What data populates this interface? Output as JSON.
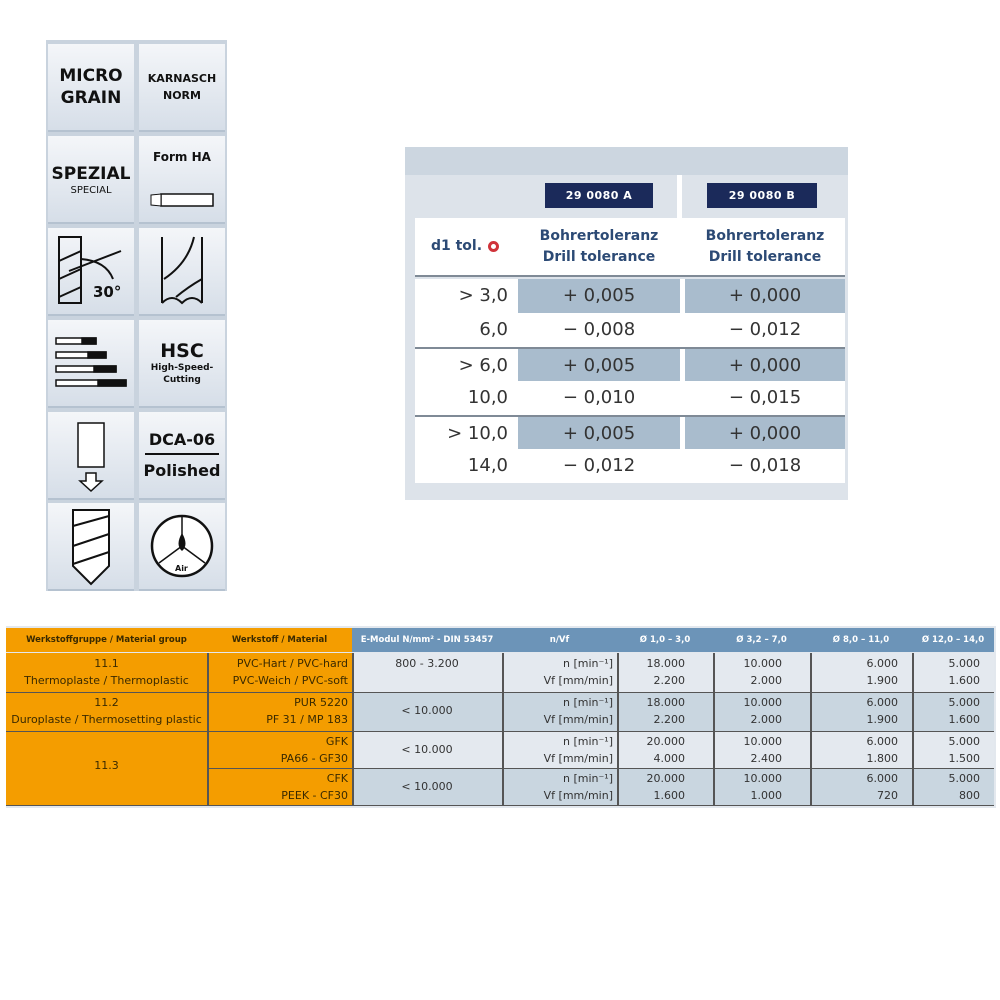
{
  "icons": {
    "micro_grain": [
      "MICRO",
      "GRAIN"
    ],
    "karnasch_norm": [
      "KARNASCH",
      "NORM"
    ],
    "spezial": [
      "SPEZIAL",
      "SPECIAL"
    ],
    "form_ha": "Form HA",
    "helix_angle": "30°",
    "hsc": [
      "HSC",
      "High-Speed-",
      "Cutting"
    ],
    "dca": [
      "DCA-06",
      "Polished"
    ],
    "coolant": "Air"
  },
  "tolerance": {
    "badges": [
      "29 0080 A",
      "29 0080 B"
    ],
    "d1_label": "d1 tol.",
    "col_header": [
      "Bohrertoleranz",
      "Drill tolerance"
    ],
    "rows": [
      {
        "d": "> 3,0",
        "a": "+ 0,005",
        "b": "+ 0,000"
      },
      {
        "d": "6,0",
        "a": "− 0,008",
        "b": "− 0,012"
      },
      {
        "d": "> 6,0",
        "a": "+ 0,005",
        "b": "+ 0,000"
      },
      {
        "d": "10,0",
        "a": "− 0,010",
        "b": "− 0,015"
      },
      {
        "d": "> 10,0",
        "a": "+ 0,005",
        "b": "+ 0,000"
      },
      {
        "d": "14,0",
        "a": "− 0,012",
        "b": "− 0,018"
      }
    ]
  },
  "materials": {
    "headers": [
      "Werkstoffgruppe / Material group",
      "Werkstoff / Material",
      "E-Modul N/mm² - DIN 53457",
      "n/Vf",
      "Ø 1,0 – 3,0",
      "Ø 3,2 – 7,0",
      "Ø 8,0 – 11,0",
      "Ø 12,0 – 14,0"
    ],
    "n_label": "n [min⁻¹]",
    "vf_label": "Vf [mm/min]",
    "groups": [
      {
        "group": [
          "11.1",
          "Thermoplaste / Thermoplastic"
        ]
      },
      {
        "group": [
          "11.2",
          "Duroplaste / Thermosetting plastic"
        ]
      },
      {
        "group": [
          "11.3"
        ]
      }
    ],
    "rows": [
      {
        "material": [
          "PVC-Hart / PVC-hard",
          "PVC-Weich / PVC-soft"
        ],
        "emodul": "800 - 3.200",
        "n": [
          "18.000",
          "10.000",
          "6.000",
          "5.000"
        ],
        "vf": [
          "2.200",
          "2.000",
          "1.900",
          "1.600"
        ]
      },
      {
        "material": [
          "PUR 5220",
          "PF 31 / MP 183"
        ],
        "emodul": "< 10.000",
        "n": [
          "18.000",
          "10.000",
          "6.000",
          "5.000"
        ],
        "vf": [
          "2.200",
          "2.000",
          "1.900",
          "1.600"
        ]
      },
      {
        "material": [
          "GFK",
          "PA66 - GF30"
        ],
        "emodul": "< 10.000",
        "n": [
          "20.000",
          "10.000",
          "6.000",
          "5.000"
        ],
        "vf": [
          "4.000",
          "2.400",
          "1.800",
          "1.500"
        ]
      },
      {
        "material": [
          "CFK",
          "PEEK - CF30"
        ],
        "emodul": "< 10.000",
        "n": [
          "20.000",
          "10.000",
          "6.000",
          "5.000"
        ],
        "vf": [
          "1.600",
          "1.000",
          "720",
          "800"
        ]
      }
    ]
  }
}
